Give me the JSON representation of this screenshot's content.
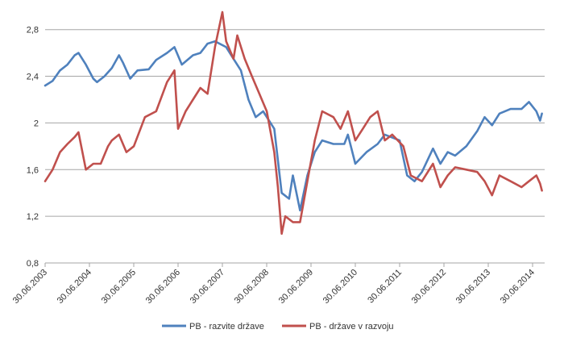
{
  "chart_data": {
    "type": "line",
    "title": "",
    "xlabel": "",
    "ylabel": "",
    "ylim": [
      0.8,
      2.95
    ],
    "y_ticks": [
      0.8,
      1.2,
      1.6,
      2.0,
      2.4,
      2.8
    ],
    "y_tick_labels": [
      "0,8",
      "1,2",
      "1,6",
      "2",
      "2,4",
      "2,8"
    ],
    "x_range": [
      "2003-06-30",
      "2014-06-30"
    ],
    "x_tick_labels": [
      "30.06.2003",
      "30.06.2004",
      "30.06.2005",
      "30.06.2006",
      "30.06.2007",
      "30.06.2008",
      "30.06.2009",
      "30.06.2010",
      "30.06.2011",
      "30.06.2012",
      "30.06.2013",
      "30.06.2014"
    ],
    "grid": "horizontal",
    "legend_position": "bottom",
    "series": [
      {
        "name": "PB - razvite države",
        "color": "#4f81bd",
        "points": [
          [
            "2003-06-30",
            2.32
          ],
          [
            "2003-08-31",
            2.36
          ],
          [
            "2003-10-31",
            2.45
          ],
          [
            "2003-12-31",
            2.5
          ],
          [
            "2004-02-29",
            2.58
          ],
          [
            "2004-03-31",
            2.6
          ],
          [
            "2004-05-31",
            2.5
          ],
          [
            "2004-07-31",
            2.38
          ],
          [
            "2004-08-31",
            2.35
          ],
          [
            "2004-10-31",
            2.4
          ],
          [
            "2004-12-31",
            2.47
          ],
          [
            "2005-02-28",
            2.58
          ],
          [
            "2005-03-31",
            2.52
          ],
          [
            "2005-05-31",
            2.38
          ],
          [
            "2005-07-31",
            2.45
          ],
          [
            "2005-10-31",
            2.46
          ],
          [
            "2005-12-31",
            2.54
          ],
          [
            "2006-03-31",
            2.6
          ],
          [
            "2006-05-31",
            2.65
          ],
          [
            "2006-07-31",
            2.5
          ],
          [
            "2006-10-31",
            2.58
          ],
          [
            "2006-12-31",
            2.6
          ],
          [
            "2007-02-28",
            2.68
          ],
          [
            "2007-04-30",
            2.7
          ],
          [
            "2007-07-31",
            2.65
          ],
          [
            "2007-09-30",
            2.55
          ],
          [
            "2007-11-30",
            2.45
          ],
          [
            "2008-01-31",
            2.2
          ],
          [
            "2008-03-31",
            2.05
          ],
          [
            "2008-05-31",
            2.1
          ],
          [
            "2008-08-31",
            1.95
          ],
          [
            "2008-10-31",
            1.4
          ],
          [
            "2008-12-31",
            1.35
          ],
          [
            "2009-01-31",
            1.55
          ],
          [
            "2009-03-31",
            1.25
          ],
          [
            "2009-05-31",
            1.55
          ],
          [
            "2009-07-31",
            1.75
          ],
          [
            "2009-09-30",
            1.85
          ],
          [
            "2009-12-31",
            1.82
          ],
          [
            "2010-03-31",
            1.82
          ],
          [
            "2010-04-30",
            1.9
          ],
          [
            "2010-06-30",
            1.65
          ],
          [
            "2010-09-30",
            1.75
          ],
          [
            "2010-12-31",
            1.82
          ],
          [
            "2011-02-28",
            1.9
          ],
          [
            "2011-06-30",
            1.85
          ],
          [
            "2011-08-31",
            1.55
          ],
          [
            "2011-10-31",
            1.5
          ],
          [
            "2011-12-31",
            1.58
          ],
          [
            "2012-03-31",
            1.78
          ],
          [
            "2012-05-31",
            1.65
          ],
          [
            "2012-07-31",
            1.75
          ],
          [
            "2012-09-30",
            1.72
          ],
          [
            "2012-12-31",
            1.8
          ],
          [
            "2013-03-31",
            1.93
          ],
          [
            "2013-05-31",
            2.05
          ],
          [
            "2013-07-31",
            1.98
          ],
          [
            "2013-09-30",
            2.08
          ],
          [
            "2013-12-31",
            2.12
          ],
          [
            "2014-03-31",
            2.12
          ],
          [
            "2014-05-31",
            2.18
          ],
          [
            "2014-07-31",
            2.1
          ],
          [
            "2014-08-31",
            2.02
          ],
          [
            "2014-09-15",
            2.08
          ]
        ]
      },
      {
        "name": "PB - države v razvoju",
        "color": "#c0504d",
        "points": [
          [
            "2003-06-30",
            1.5
          ],
          [
            "2003-08-31",
            1.6
          ],
          [
            "2003-10-31",
            1.75
          ],
          [
            "2003-12-31",
            1.82
          ],
          [
            "2004-02-29",
            1.88
          ],
          [
            "2004-03-31",
            1.92
          ],
          [
            "2004-05-31",
            1.6
          ],
          [
            "2004-07-31",
            1.65
          ],
          [
            "2004-09-30",
            1.65
          ],
          [
            "2004-11-30",
            1.8
          ],
          [
            "2004-12-31",
            1.85
          ],
          [
            "2005-02-28",
            1.9
          ],
          [
            "2005-04-30",
            1.75
          ],
          [
            "2005-06-30",
            1.8
          ],
          [
            "2005-09-30",
            2.05
          ],
          [
            "2005-12-31",
            2.1
          ],
          [
            "2006-03-31",
            2.35
          ],
          [
            "2006-05-31",
            2.45
          ],
          [
            "2006-06-30",
            1.95
          ],
          [
            "2006-08-31",
            2.1
          ],
          [
            "2006-10-31",
            2.2
          ],
          [
            "2006-12-31",
            2.3
          ],
          [
            "2007-02-28",
            2.25
          ],
          [
            "2007-04-30",
            2.65
          ],
          [
            "2007-06-30",
            2.95
          ],
          [
            "2007-07-31",
            2.7
          ],
          [
            "2007-09-30",
            2.55
          ],
          [
            "2007-10-31",
            2.75
          ],
          [
            "2007-12-31",
            2.55
          ],
          [
            "2008-02-29",
            2.4
          ],
          [
            "2008-04-30",
            2.25
          ],
          [
            "2008-06-30",
            2.1
          ],
          [
            "2008-08-31",
            1.75
          ],
          [
            "2008-09-30",
            1.45
          ],
          [
            "2008-10-31",
            1.05
          ],
          [
            "2008-11-30",
            1.2
          ],
          [
            "2009-01-31",
            1.15
          ],
          [
            "2009-03-31",
            1.15
          ],
          [
            "2009-05-31",
            1.5
          ],
          [
            "2009-07-31",
            1.85
          ],
          [
            "2009-09-30",
            2.1
          ],
          [
            "2009-12-31",
            2.05
          ],
          [
            "2010-02-28",
            1.95
          ],
          [
            "2010-04-30",
            2.1
          ],
          [
            "2010-06-30",
            1.85
          ],
          [
            "2010-08-31",
            1.95
          ],
          [
            "2010-10-31",
            2.05
          ],
          [
            "2010-12-31",
            2.1
          ],
          [
            "2011-02-28",
            1.85
          ],
          [
            "2011-04-30",
            1.9
          ],
          [
            "2011-07-31",
            1.8
          ],
          [
            "2011-09-30",
            1.55
          ],
          [
            "2011-12-31",
            1.5
          ],
          [
            "2012-03-31",
            1.65
          ],
          [
            "2012-05-31",
            1.45
          ],
          [
            "2012-07-31",
            1.55
          ],
          [
            "2012-09-30",
            1.62
          ],
          [
            "2012-12-31",
            1.6
          ],
          [
            "2013-03-31",
            1.58
          ],
          [
            "2013-05-31",
            1.5
          ],
          [
            "2013-07-31",
            1.38
          ],
          [
            "2013-09-30",
            1.55
          ],
          [
            "2013-12-31",
            1.5
          ],
          [
            "2014-03-31",
            1.45
          ],
          [
            "2014-05-31",
            1.5
          ],
          [
            "2014-07-31",
            1.55
          ],
          [
            "2014-08-31",
            1.48
          ],
          [
            "2014-09-15",
            1.42
          ]
        ]
      }
    ]
  }
}
